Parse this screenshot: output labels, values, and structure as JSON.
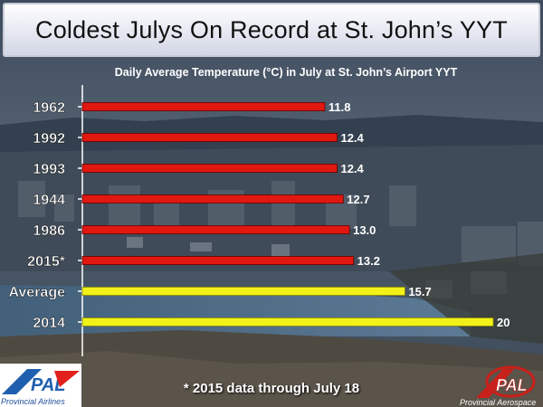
{
  "title": "Coldest Julys On Record at St. John’s YYT",
  "colors": {
    "record_bar": "#e01810",
    "reference_bar": "#f2f21a"
  },
  "footnote": "* 2015 data through July 18",
  "logos": {
    "left_caption": "Provincial Airlines",
    "left_mark": "PAL",
    "right_caption": "Provincial Aerospace",
    "right_mark": "PAL"
  },
  "chart_data": {
    "type": "bar",
    "orientation": "horizontal",
    "title": "Daily Average Temperature (°C) in July at St. John’s Airport YYT",
    "categories": [
      "1962",
      "1992",
      "1993",
      "1944",
      "1986",
      "2015*",
      "Average",
      "2014"
    ],
    "values": [
      11.8,
      12.4,
      12.4,
      12.7,
      13.0,
      13.2,
      15.7,
      20
    ],
    "value_labels": [
      "11.8",
      "12.4",
      "12.4",
      "12.7",
      "13.0",
      "13.2",
      "15.7",
      "20"
    ],
    "highlight": [
      "record",
      "record",
      "record",
      "record",
      "record",
      "record",
      "reference",
      "reference"
    ],
    "xlim": [
      0,
      20
    ],
    "grid": false,
    "legend": "none"
  }
}
